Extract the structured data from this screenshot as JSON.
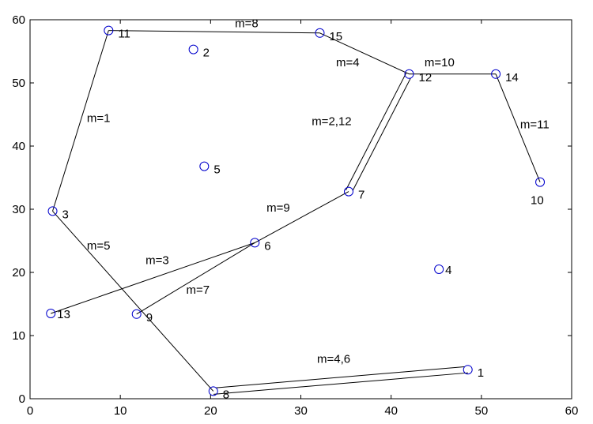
{
  "chart_data": {
    "type": "scatter",
    "title": "",
    "xlabel": "",
    "ylabel": "",
    "xlim": [
      0,
      60
    ],
    "ylim": [
      0,
      60
    ],
    "xticks": [
      0,
      10,
      20,
      30,
      40,
      50,
      60
    ],
    "yticks": [
      0,
      10,
      20,
      30,
      40,
      50,
      60
    ],
    "grid": false,
    "marker_color": "#0000cc",
    "line_color": "#000000",
    "nodes": [
      {
        "id": "1",
        "label": "1",
        "x": 48.5,
        "y": 4.6
      },
      {
        "id": "2",
        "label": "2",
        "x": 18.1,
        "y": 55.3
      },
      {
        "id": "3",
        "label": "3",
        "x": 2.5,
        "y": 29.7
      },
      {
        "id": "4",
        "label": "4",
        "x": 45.3,
        "y": 20.5
      },
      {
        "id": "5",
        "label": "5",
        "x": 19.3,
        "y": 36.8
      },
      {
        "id": "6",
        "label": "6",
        "x": 24.9,
        "y": 24.7
      },
      {
        "id": "7",
        "label": "7",
        "x": 35.3,
        "y": 32.8
      },
      {
        "id": "8",
        "label": "8",
        "x": 20.3,
        "y": 1.2
      },
      {
        "id": "9",
        "label": "9",
        "x": 11.8,
        "y": 13.4
      },
      {
        "id": "10",
        "label": "10",
        "x": 56.5,
        "y": 34.3
      },
      {
        "id": "11",
        "label": "11",
        "x": 8.7,
        "y": 58.3
      },
      {
        "id": "12",
        "label": "12",
        "x": 42.0,
        "y": 51.4
      },
      {
        "id": "13",
        "label": "13",
        "x": 2.3,
        "y": 13.5
      },
      {
        "id": "14",
        "label": "14",
        "x": 51.6,
        "y": 51.4
      },
      {
        "id": "15",
        "label": "15",
        "x": 32.1,
        "y": 57.9
      }
    ],
    "edges": [
      {
        "from": "11",
        "to": "15",
        "label": "m=8",
        "double": false
      },
      {
        "from": "11",
        "to": "3",
        "label": "m=1",
        "double": false
      },
      {
        "from": "15",
        "to": "12",
        "label": "m=4",
        "double": false
      },
      {
        "from": "12",
        "to": "14",
        "label": "m=10",
        "double": false
      },
      {
        "from": "14",
        "to": "10",
        "label": "m=11",
        "double": false
      },
      {
        "from": "12",
        "to": "7",
        "label": "m=2,12",
        "double": true
      },
      {
        "from": "7",
        "to": "6",
        "label": "m=9",
        "double": false
      },
      {
        "from": "6",
        "to": "13",
        "label": "m=3",
        "double": false
      },
      {
        "from": "6",
        "to": "9",
        "label": "m=7",
        "double": false
      },
      {
        "from": "3",
        "to": "8",
        "label": "m=5",
        "double": false
      },
      {
        "from": "8",
        "to": "1",
        "label": "m=4,6",
        "double": true
      }
    ],
    "edge_label_positions": [
      {
        "label": "m=8",
        "x": 22.7,
        "y": 58.8
      },
      {
        "label": "m=1",
        "x": 6.3,
        "y": 43.8
      },
      {
        "label": "m=4",
        "x": 33.9,
        "y": 52.6
      },
      {
        "label": "m=10",
        "x": 43.7,
        "y": 52.6
      },
      {
        "label": "m=11",
        "x": 54.3,
        "y": 42.8
      },
      {
        "label": "m=2,12",
        "x": 31.2,
        "y": 43.3
      },
      {
        "label": "m=9",
        "x": 26.2,
        "y": 29.6
      },
      {
        "label": "m=3",
        "x": 12.8,
        "y": 21.3
      },
      {
        "label": "m=7",
        "x": 17.3,
        "y": 16.6
      },
      {
        "label": "m=5",
        "x": 6.3,
        "y": 23.6
      },
      {
        "label": "m=4,6",
        "x": 31.8,
        "y": 5.7
      }
    ]
  }
}
